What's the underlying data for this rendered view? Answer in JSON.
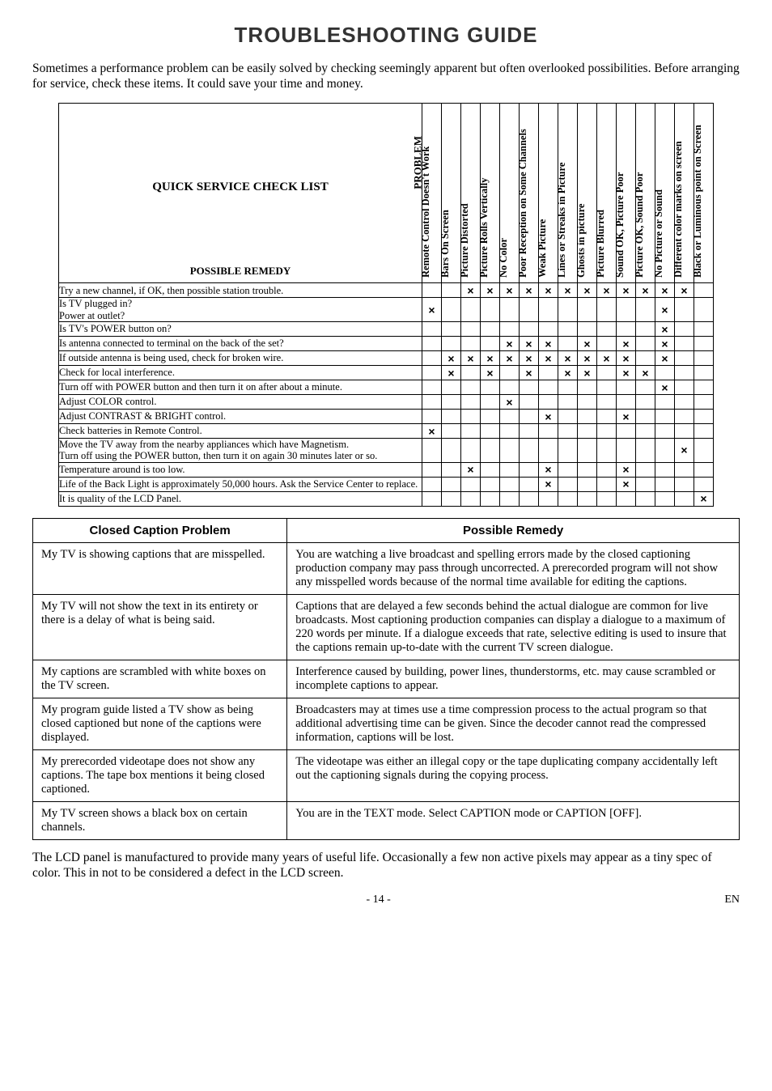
{
  "title": "TROUBLESHOOTING GUIDE",
  "intro": "Sometimes a performance problem can be easily solved by checking seemingly apparent but often overlooked possibilities. Before arranging for service, check these items. It could save your time and money.",
  "matrix": {
    "corner": {
      "problem": "PROBLEM",
      "title": "QUICK SERVICE CHECK LIST",
      "remedy": "POSSIBLE REMEDY"
    },
    "columns": [
      "Remote Control Doesn't Work",
      "Bars On Screen",
      "Picture Distorted",
      "Picture Rolls Vertically",
      "No Color",
      "Poor Reception on Some Channels",
      "Weak Picture",
      "Lines or Streaks in Picture",
      "Ghosts in picture",
      "Picture Blurred",
      "Sound OK, Picture Poor",
      "Picture OK, Sound Poor",
      "No Picture or Sound",
      "Different color marks on screen",
      "Black or Luminous point on Screen"
    ],
    "rows": [
      {
        "label": "Try a new channel, if OK, then possible station trouble.",
        "marks": [
          0,
          0,
          1,
          1,
          1,
          1,
          1,
          1,
          1,
          1,
          1,
          1,
          1,
          1,
          0
        ]
      },
      {
        "label": "Is TV plugged in?\nPower at outlet?",
        "marks": [
          1,
          0,
          0,
          0,
          0,
          0,
          0,
          0,
          0,
          0,
          0,
          0,
          1,
          0,
          0
        ]
      },
      {
        "label": "Is TV's POWER button on?",
        "marks": [
          0,
          0,
          0,
          0,
          0,
          0,
          0,
          0,
          0,
          0,
          0,
          0,
          1,
          0,
          0
        ]
      },
      {
        "label": "Is antenna connected to terminal on the back of the set?",
        "marks": [
          0,
          0,
          0,
          0,
          1,
          1,
          1,
          0,
          1,
          0,
          1,
          0,
          1,
          0,
          0
        ]
      },
      {
        "label": "If outside antenna is being used, check for broken wire.",
        "marks": [
          0,
          1,
          1,
          1,
          1,
          1,
          1,
          1,
          1,
          1,
          1,
          0,
          1,
          0,
          0
        ]
      },
      {
        "label": "Check for local interference.",
        "marks": [
          0,
          1,
          0,
          1,
          0,
          1,
          0,
          1,
          1,
          0,
          1,
          1,
          0,
          0,
          0
        ]
      },
      {
        "label": "Turn off with POWER button and then turn it on after about a minute.",
        "marks": [
          0,
          0,
          0,
          0,
          0,
          0,
          0,
          0,
          0,
          0,
          0,
          0,
          1,
          0,
          0
        ]
      },
      {
        "label": "Adjust COLOR control.",
        "marks": [
          0,
          0,
          0,
          0,
          1,
          0,
          0,
          0,
          0,
          0,
          0,
          0,
          0,
          0,
          0
        ]
      },
      {
        "label": "Adjust CONTRAST & BRIGHT control.",
        "marks": [
          0,
          0,
          0,
          0,
          0,
          0,
          1,
          0,
          0,
          0,
          1,
          0,
          0,
          0,
          0
        ]
      },
      {
        "label": "Check batteries in Remote Control.",
        "marks": [
          1,
          0,
          0,
          0,
          0,
          0,
          0,
          0,
          0,
          0,
          0,
          0,
          0,
          0,
          0
        ]
      },
      {
        "label": "Move the TV away from the nearby appliances which have Magnetism.\nTurn off using the POWER button, then turn it on again 30 minutes later or so.",
        "marks": [
          0,
          0,
          0,
          0,
          0,
          0,
          0,
          0,
          0,
          0,
          0,
          0,
          0,
          1,
          0
        ]
      },
      {
        "label": "Temperature around is too low.",
        "marks": [
          0,
          0,
          1,
          0,
          0,
          0,
          1,
          0,
          0,
          0,
          1,
          0,
          0,
          0,
          0
        ]
      },
      {
        "label": "Life of the Back Light is approximately 50,000 hours. Ask the Service Center to replace.",
        "marks": [
          0,
          0,
          0,
          0,
          0,
          0,
          1,
          0,
          0,
          0,
          1,
          0,
          0,
          0,
          0
        ]
      },
      {
        "label": "It is quality of the LCD Panel.",
        "marks": [
          0,
          0,
          0,
          0,
          0,
          0,
          0,
          0,
          0,
          0,
          0,
          0,
          0,
          0,
          1
        ]
      }
    ]
  },
  "cc": {
    "head_left": "Closed Caption Problem",
    "head_right": "Possible Remedy",
    "rows": [
      {
        "l": "My TV is showing captions that are misspelled.",
        "r": "You are watching a live broadcast and spelling errors made by the closed captioning production company may pass through uncorrected. A prerecorded program will not show any misspelled words because of the normal time available for editing the captions."
      },
      {
        "l": "My TV will not show the text in its entirety or there is a delay of what is being said.",
        "r": "Captions that are delayed a few seconds behind the actual dialogue are common for live broadcasts. Most captioning production companies can display a dialogue to a maximum of 220 words per minute. If a dialogue exceeds that rate, selective editing is used to insure that the captions remain up-to-date with the current TV screen dialogue."
      },
      {
        "l": "My captions are scrambled with white boxes on the TV screen.",
        "r": "Interference caused by building, power lines, thunderstorms, etc. may cause scrambled or incomplete captions to appear."
      },
      {
        "l": "My program guide listed a TV show as being closed captioned but none of the captions were displayed.",
        "r": "Broadcasters may at times use a time compression process to the actual program so that additional advertising time can be given. Since the decoder cannot read the compressed information, captions will be lost."
      },
      {
        "l": "My prerecorded videotape does not show any captions. The tape box mentions it being closed captioned.",
        "r": "The videotape was either an illegal copy or the tape duplicating company accidentally left out the captioning signals during the copying process."
      },
      {
        "l": "My TV screen shows a black box on certain channels.",
        "r": "You are in the TEXT mode. Select CAPTION mode or CAPTION [OFF]."
      }
    ]
  },
  "footnote": "The LCD panel is manufactured to provide many years of useful life. Occasionally a few non active pixels may appear as a tiny spec of color. This in not to be considered a defect in the LCD screen.",
  "page": "- 14 -",
  "lang": "EN"
}
